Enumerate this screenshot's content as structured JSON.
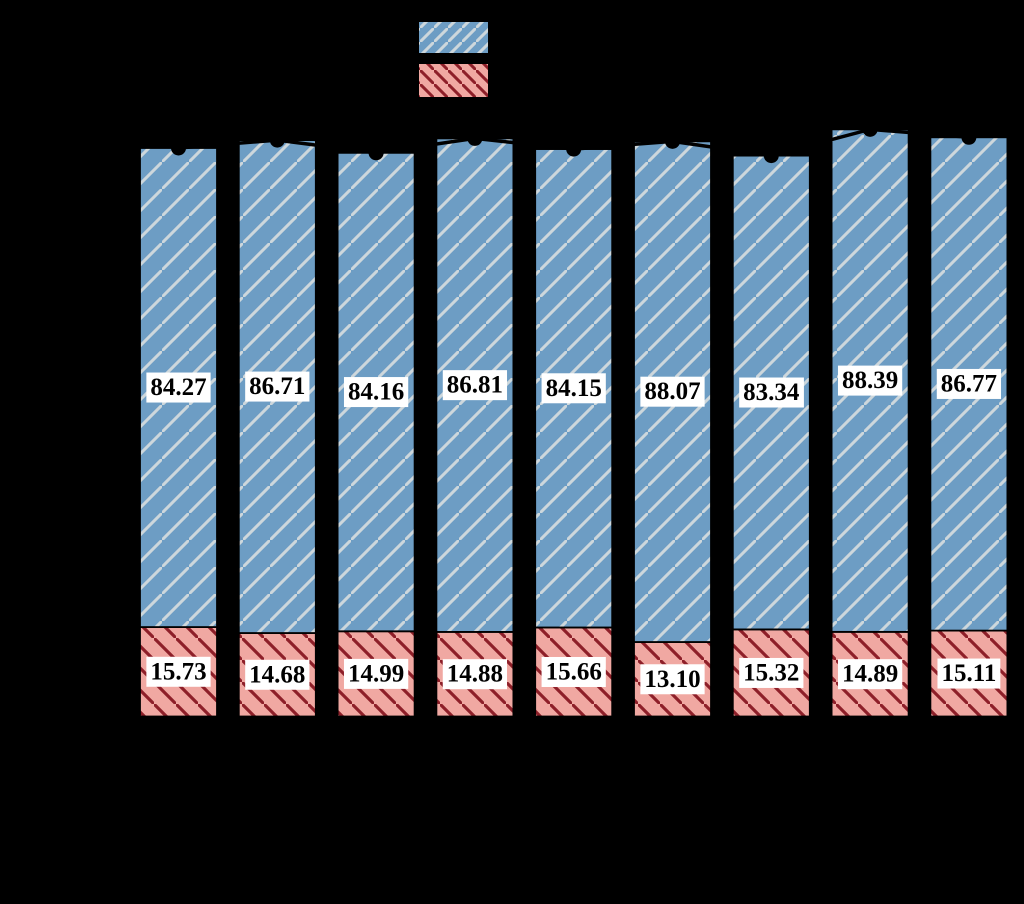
{
  "figure": {
    "background": "#000000"
  },
  "legend": {
    "items": [
      {
        "name": "blue-hatched-series",
        "swatch_fill": "#6d9dc4",
        "hatch": "/",
        "hatch_color": "#cdd7dc"
      },
      {
        "name": "pink-hatched-series",
        "swatch_fill": "#f0a8a2",
        "hatch": "\\",
        "hatch_color": "#8e1f29"
      }
    ]
  },
  "chart_data": {
    "type": "bar",
    "stacked": true,
    "n_bars": 9,
    "axes_visible": false,
    "background": "#000000",
    "series": [
      {
        "name": "top-blue-hatched",
        "fill": "#6d9dc4",
        "hatch": "/",
        "hatch_color": "#cdd7dc",
        "edge_color": "#000000",
        "values": [
          84.27,
          86.71,
          84.16,
          86.81,
          84.15,
          88.07,
          83.34,
          88.39,
          86.77
        ]
      },
      {
        "name": "bottom-pink-hatched",
        "fill": "#f0a8a2",
        "hatch": "\\",
        "hatch_color": "#8e1f29",
        "edge_color": "#000000",
        "values": [
          15.73,
          14.68,
          14.99,
          14.88,
          15.66,
          13.1,
          15.32,
          14.89,
          15.11
        ]
      }
    ],
    "totals_line": {
      "type": "line",
      "color": "#000000",
      "marker": "circle",
      "marker_color": "#000000"
    },
    "value_labels": {
      "format": "0.00",
      "text_color": "#000000",
      "box_color": "#ffffff"
    }
  }
}
